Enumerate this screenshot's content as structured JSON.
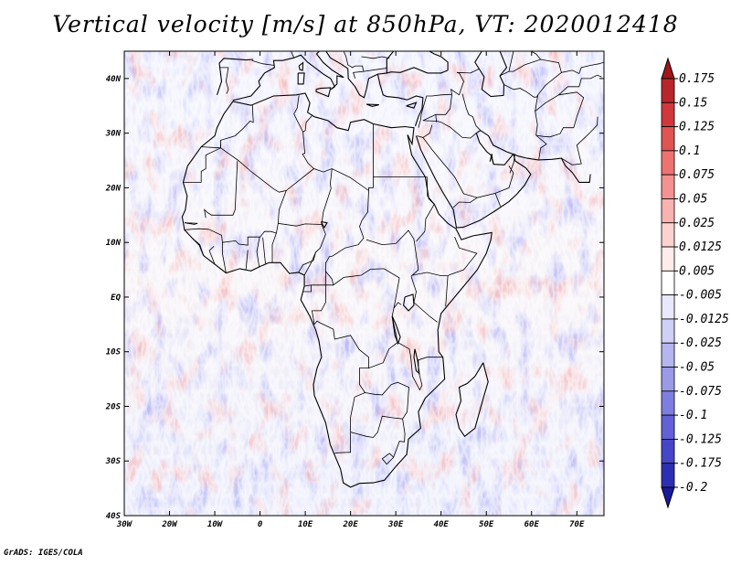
{
  "chart_data": {
    "type": "heatmap",
    "title": "Vertical velocity [m/s] at 850hPa, VT: 2020012418",
    "variable": "Vertical velocity",
    "units": "m/s",
    "level": "850hPa",
    "valid_time": "2020012418",
    "x_axis": {
      "range": [
        -30,
        76
      ],
      "ticks": [
        -30,
        -20,
        -10,
        0,
        10,
        20,
        30,
        40,
        50,
        60,
        70
      ],
      "tick_labels": [
        "30W",
        "20W",
        "10W",
        "0",
        "10E",
        "20E",
        "30E",
        "40E",
        "50E",
        "60E",
        "70E"
      ]
    },
    "y_axis": {
      "range": [
        -40,
        45
      ],
      "ticks": [
        -40,
        -30,
        -20,
        -10,
        0,
        10,
        20,
        30,
        40
      ],
      "tick_labels": [
        "40S",
        "30S",
        "20S",
        "10S",
        "EQ",
        "10N",
        "20N",
        "30N",
        "40N"
      ]
    },
    "colorbar": {
      "labels": [
        "0.175",
        "0.15",
        "0.125",
        "0.1",
        "0.075",
        "0.05",
        "0.025",
        "0.0125",
        "0.005",
        "-0.005",
        "-0.0125",
        "-0.025",
        "-0.05",
        "-0.075",
        "-0.1",
        "-0.125",
        "-0.175",
        "-0.2"
      ],
      "colors": [
        "#a0171c",
        "#b8262b",
        "#d0383c",
        "#e05452",
        "#ec7370",
        "#f39290",
        "#f8b3b0",
        "#fbd2cf",
        "#fdeceb",
        "#ffffff",
        "#e9e9fb",
        "#d0d0f6",
        "#b5b5ef",
        "#9a9ae8",
        "#7e7ee0",
        "#6262d6",
        "#4646c8",
        "#2e2eb5",
        "#1a1a9c"
      ]
    },
    "credit": "GrADS: IGES/COLA"
  }
}
